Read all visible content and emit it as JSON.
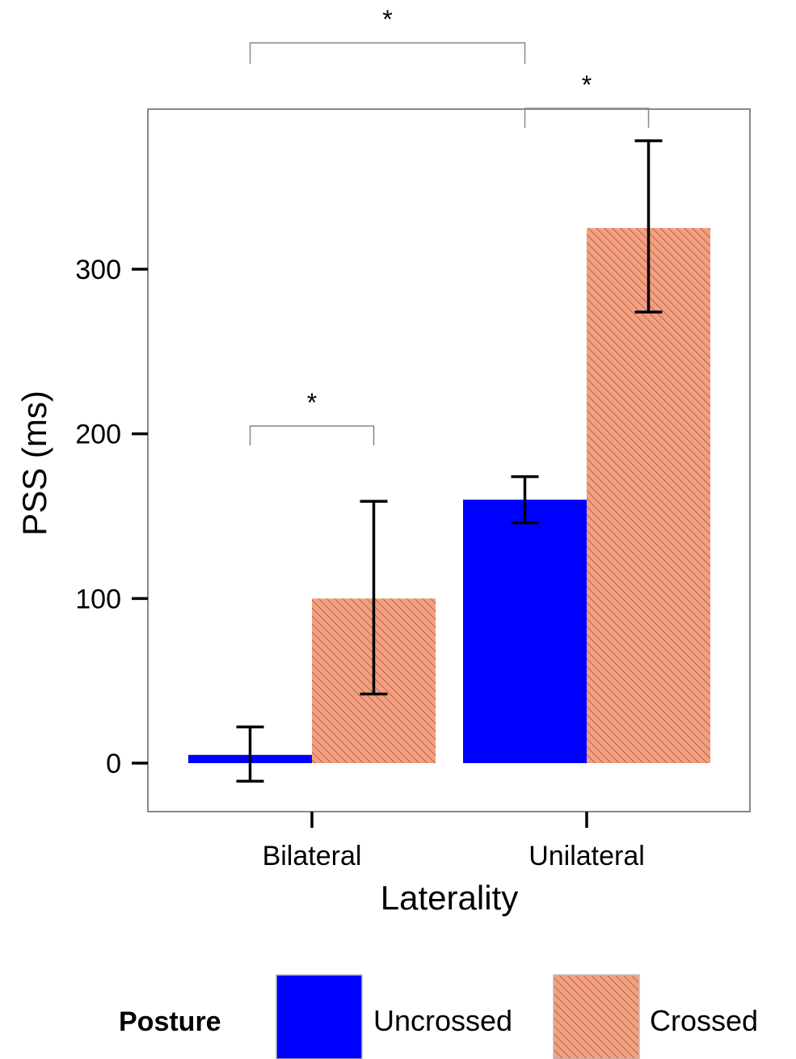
{
  "chart_data": {
    "type": "bar",
    "xlabel": "Laterality",
    "ylabel": "PSS (ms)",
    "categories": [
      "Bilateral",
      "Unilateral"
    ],
    "ylim": [
      -30,
      398
    ],
    "yticks": [
      0,
      100,
      200,
      300
    ],
    "grid": false,
    "series": [
      {
        "name": "Uncrossed",
        "color": "#0000FF",
        "pattern": "solid",
        "values": [
          5,
          160
        ],
        "error_low": [
          -11,
          146
        ],
        "error_high": [
          22,
          174
        ]
      },
      {
        "name": "Crossed",
        "color": "#F4A080",
        "pattern": "hatched",
        "values": [
          100,
          325
        ],
        "error_low": [
          42,
          274
        ],
        "error_high": [
          159,
          378
        ]
      }
    ],
    "legend": {
      "title": "Posture",
      "position": "bottom",
      "entries": [
        "Uncrossed",
        "Crossed"
      ]
    },
    "significance": [
      {
        "label": "*",
        "from": [
          0,
          0
        ],
        "to": [
          0,
          1
        ]
      },
      {
        "label": "*",
        "from": [
          1,
          0
        ],
        "to": [
          1,
          1
        ]
      },
      {
        "label": "*",
        "from": [
          0,
          0
        ],
        "to": [
          1,
          0
        ]
      }
    ]
  }
}
